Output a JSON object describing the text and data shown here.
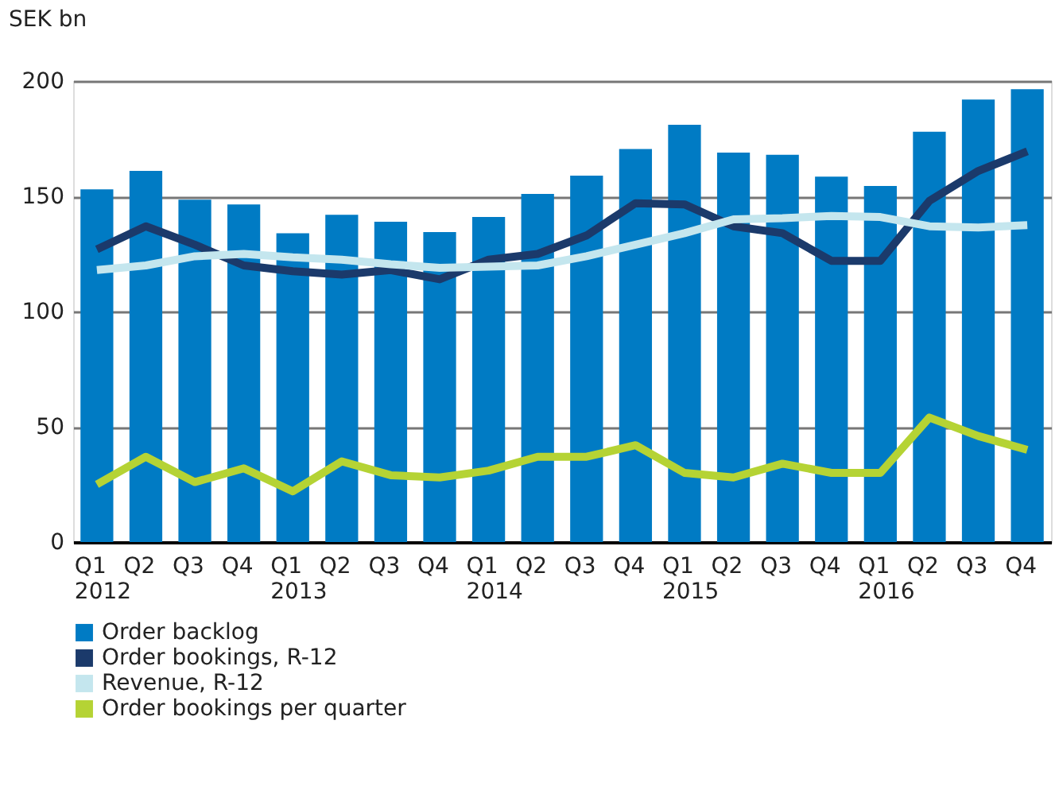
{
  "chart_data": {
    "type": "bar",
    "ylabel": "SEK bn",
    "categories": [
      "Q1\n2012",
      "Q2",
      "Q3",
      "Q4",
      "Q1\n2013",
      "Q2",
      "Q3",
      "Q4",
      "Q1\n2014",
      "Q2",
      "Q3",
      "Q4",
      "Q1\n2015",
      "Q2",
      "Q3",
      "Q4",
      "Q1\n2016",
      "Q2",
      "Q3",
      "Q4"
    ],
    "series": [
      {
        "name": "Order backlog",
        "color": "#007bc4",
        "values": [
          153,
          161,
          148.5,
          146.5,
          134,
          142,
          139,
          134.5,
          141,
          151,
          159,
          170.5,
          181,
          169,
          168,
          158.5,
          154.5,
          178,
          192,
          196.5
        ]
      },
      {
        "name": "Order bookings, R-12",
        "type": "line",
        "color": "#1b3a6b",
        "values": [
          127,
          137,
          129,
          120,
          117.5,
          116,
          118,
          114,
          122.5,
          125,
          133,
          147,
          146.5,
          137,
          134,
          122,
          122,
          148,
          161,
          169.5
        ]
      },
      {
        "name": "Revenue, R-12",
        "type": "line",
        "color": "#c4e6ee",
        "values": [
          118,
          120,
          124,
          125,
          123.5,
          122.5,
          120.5,
          119,
          119.5,
          120,
          124,
          129,
          134,
          140,
          140.5,
          141.5,
          141,
          137,
          136.5,
          137.5
        ]
      },
      {
        "name": "Order bookings per quarter",
        "type": "line",
        "color": "#b5d334",
        "values": [
          25,
          37,
          26,
          32,
          22,
          35,
          29,
          28,
          31,
          37,
          37,
          42,
          30,
          28,
          34,
          30,
          30,
          54,
          46,
          40
        ]
      }
    ],
    "ylim": [
      0,
      200
    ],
    "yticks": [
      0,
      50,
      100,
      150,
      200
    ],
    "grid": "y",
    "legend": "bottom",
    "marker": "none",
    "line_style": "solid"
  }
}
